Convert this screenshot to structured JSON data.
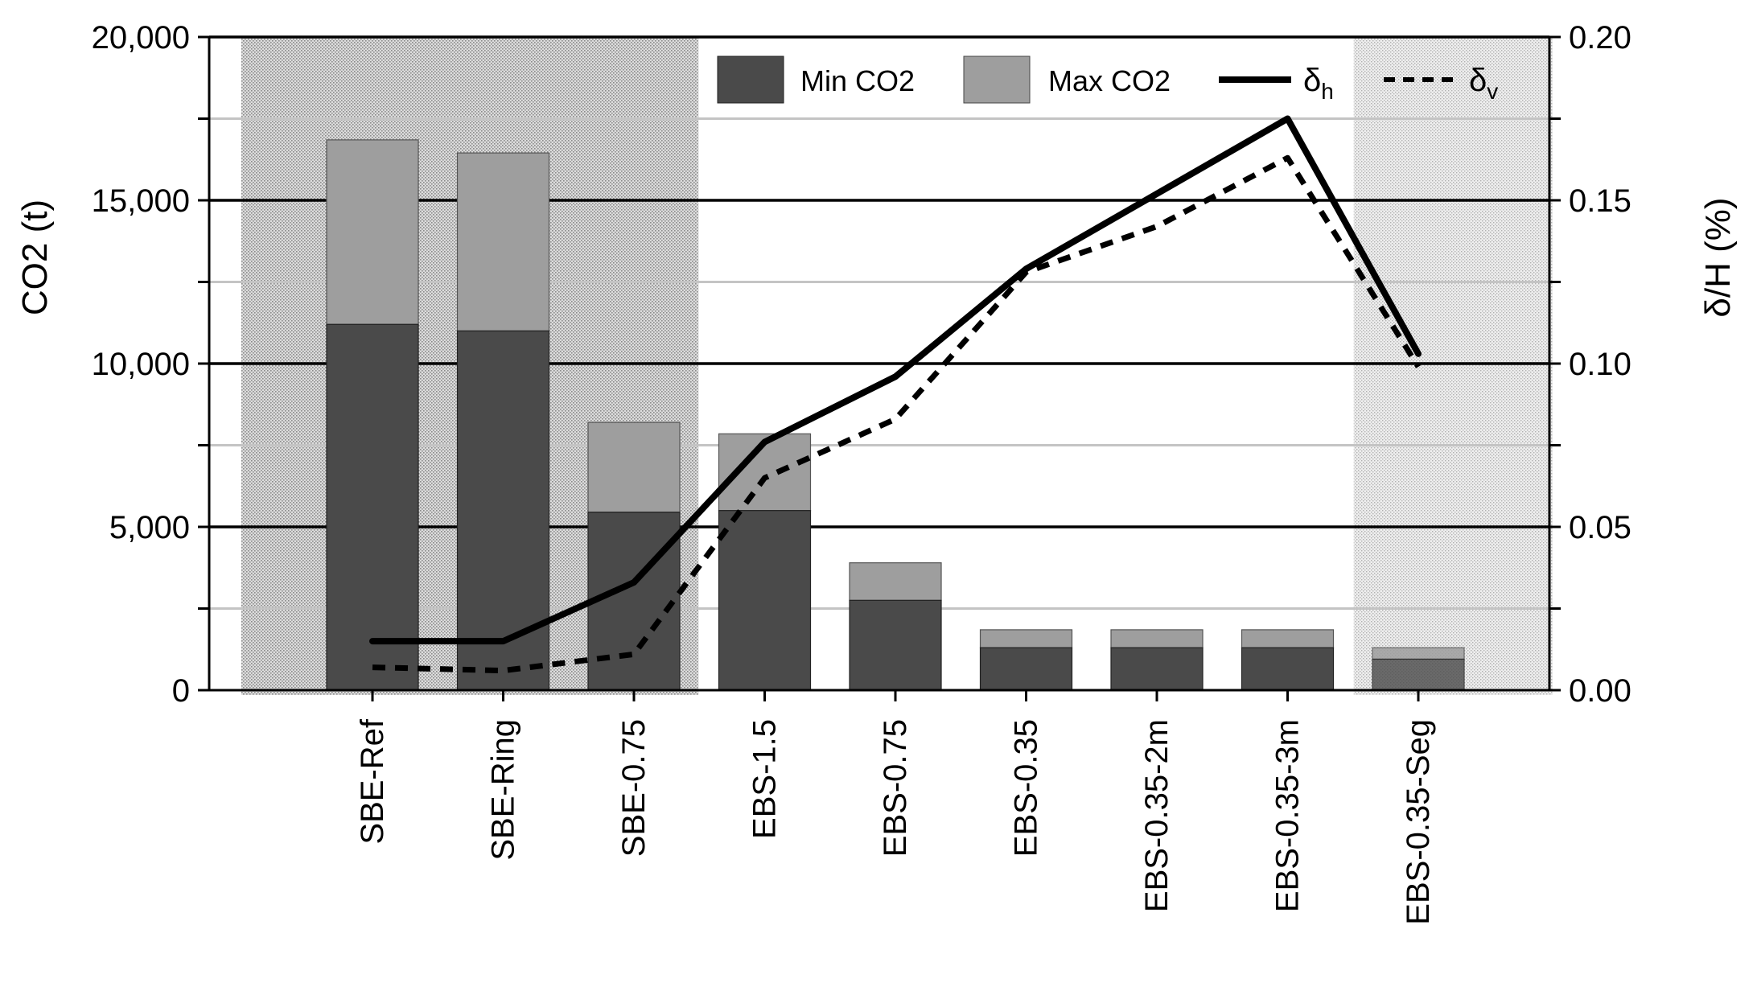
{
  "chart_data": {
    "type": "bar",
    "categories": [
      "SBE-Ref",
      "SBE-Ring",
      "SBE-0.75",
      "EBS-1.5",
      "EBS-0.75",
      "EBS-0.35",
      "EBS-0.35-2m",
      "EBS-0.35-3m",
      "EBS-0.35-Seg"
    ],
    "series": [
      {
        "name": "Min CO2",
        "kind": "bar",
        "axis": "left",
        "color": "#4a4a4a",
        "values": [
          11200,
          11000,
          5450,
          5500,
          2750,
          1300,
          1300,
          1300,
          950
        ]
      },
      {
        "name": "Max CO2",
        "kind": "bar",
        "axis": "left",
        "color": "#9e9e9e",
        "values": [
          16850,
          16450,
          8200,
          7850,
          3900,
          1850,
          1850,
          1850,
          1300
        ]
      },
      {
        "name": "δh",
        "kind": "line",
        "axis": "right",
        "style": "solid",
        "values": [
          0.015,
          0.015,
          0.033,
          0.076,
          0.096,
          0.129,
          0.152,
          0.175,
          0.103
        ]
      },
      {
        "name": "δv",
        "kind": "line",
        "axis": "right",
        "style": "dashed",
        "values": [
          0.007,
          0.006,
          0.011,
          0.065,
          0.083,
          0.128,
          0.142,
          0.163,
          0.099
        ]
      }
    ],
    "yleft": {
      "label": "CO2 (t)",
      "range": [
        0,
        20000
      ],
      "ticks": [
        "0",
        "5,000",
        "10,000",
        "15,000",
        "20,000"
      ]
    },
    "yright": {
      "label": "δ/H (%)",
      "range": [
        0,
        0.2
      ],
      "ticks": [
        "0.00",
        "0.05",
        "0.10",
        "0.15",
        "0.20"
      ]
    },
    "shaded_regions": [
      {
        "from_category": "SBE-Ref",
        "to_category": "SBE-0.75",
        "style": "dark-dotted"
      },
      {
        "from_category": "EBS-0.35-Seg",
        "to_category": "EBS-0.35-Seg",
        "style": "light-dotted"
      }
    ],
    "legend": {
      "position": "top-right",
      "min_label": "Min CO2",
      "max_label": "Max CO2",
      "dh_symbol": "δ",
      "dh_sub": "h",
      "dv_symbol": "δ",
      "dv_sub": "v"
    }
  }
}
